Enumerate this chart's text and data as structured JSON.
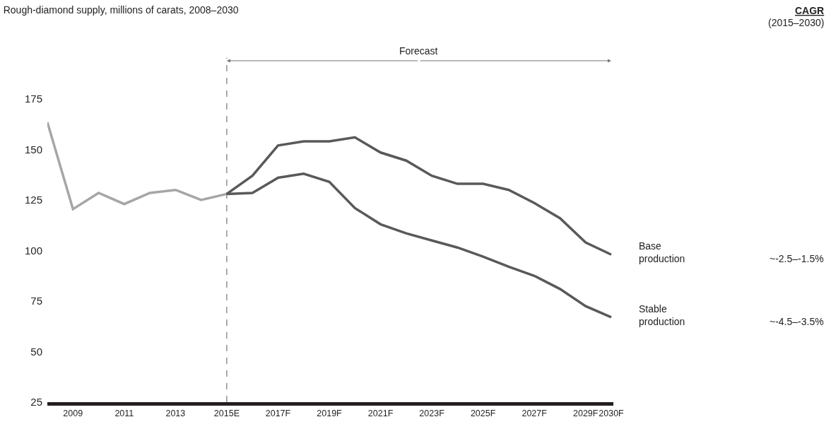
{
  "chart_data": {
    "type": "line",
    "title": "Rough-diamond supply, millions of carats, 2008–2030",
    "categories": [
      null,
      "2009",
      null,
      "2011",
      null,
      "2013",
      null,
      "2015E",
      null,
      "2017F",
      null,
      "2019F",
      null,
      "2021F",
      null,
      "2023F",
      null,
      "2025F",
      null,
      "2027F",
      null,
      "2029F",
      "2030F"
    ],
    "series": [
      {
        "color": "#a6a6a6",
        "values": [
          163.5,
          120.5,
          128.5,
          123,
          128.5,
          130,
          125,
          128,
          null,
          null,
          null,
          null,
          null,
          null,
          null,
          null,
          null,
          null,
          null,
          null,
          null,
          null,
          null
        ]
      },
      {
        "name": "Base production",
        "color": "#58595b",
        "values": [
          null,
          null,
          null,
          null,
          null,
          null,
          null,
          128,
          137,
          152,
          154,
          154,
          156,
          148.5,
          144.5,
          137,
          133,
          133,
          130,
          123.5,
          116,
          104,
          98
        ]
      },
      {
        "name": "Stable production",
        "color": "#58595b",
        "values": [
          null,
          null,
          null,
          null,
          null,
          null,
          null,
          128,
          128.5,
          136,
          138,
          134,
          121,
          113,
          108.5,
          105,
          101.5,
          97,
          92,
          87.5,
          81,
          72.5,
          67
        ]
      }
    ],
    "ylim": [
      25,
      175
    ],
    "yticks": [
      25,
      50,
      75,
      100,
      125,
      150,
      175
    ],
    "grid": false,
    "legend": false,
    "marker": "none",
    "line_style": "solid",
    "ref_lines": [
      {
        "axis": "x",
        "value": "2015E",
        "color": "#58595b",
        "line_style": "dashed"
      }
    ],
    "annotations": [
      "CAGR",
      "(2015–2030)",
      "Forecast",
      "~-2.5–-1.5%",
      "~-4.5–-3.5%"
    ]
  }
}
